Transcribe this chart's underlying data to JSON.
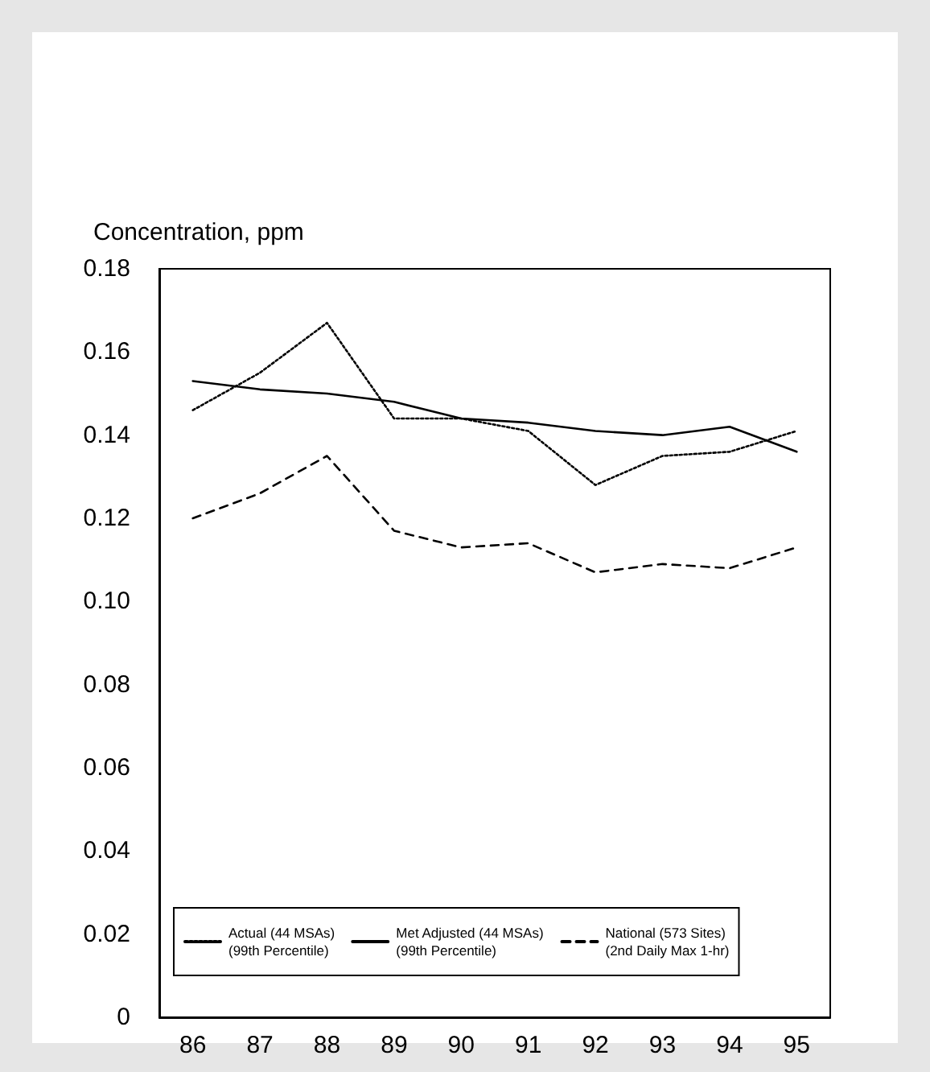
{
  "chart_data": {
    "type": "line",
    "ylabel": "Concentration, ppm",
    "categories": [
      "86",
      "87",
      "88",
      "89",
      "90",
      "91",
      "92",
      "93",
      "94",
      "95"
    ],
    "series": [
      {
        "name": "Actual (44 MSAs)\n(99th Percentile)",
        "color": "#000000",
        "line_style": "dotted",
        "values": [
          0.146,
          0.155,
          0.167,
          0.144,
          0.144,
          0.141,
          0.128,
          0.135,
          0.136,
          0.141
        ]
      },
      {
        "name": "Met Adjusted (44 MSAs)\n(99th Percentile)",
        "color": "#000000",
        "line_style": "solid",
        "values": [
          0.153,
          0.151,
          0.15,
          0.148,
          0.144,
          0.143,
          0.141,
          0.14,
          0.142,
          0.136
        ]
      },
      {
        "name": "National (573 Sites)\n(2nd Daily Max 1-hr)",
        "color": "#000000",
        "line_style": "dashed",
        "values": [
          0.12,
          0.126,
          0.135,
          0.117,
          0.113,
          0.114,
          0.107,
          0.109,
          0.108,
          0.113
        ]
      }
    ],
    "ylim": [
      0,
      0.18
    ],
    "yticks": [
      0,
      0.02,
      0.04,
      0.06,
      0.08,
      {
        "value": 0.1,
        "label": "0.10"
      },
      0.12,
      0.14,
      0.16,
      0.18
    ],
    "grid": false,
    "legend": "bottom",
    "marker": "none"
  }
}
